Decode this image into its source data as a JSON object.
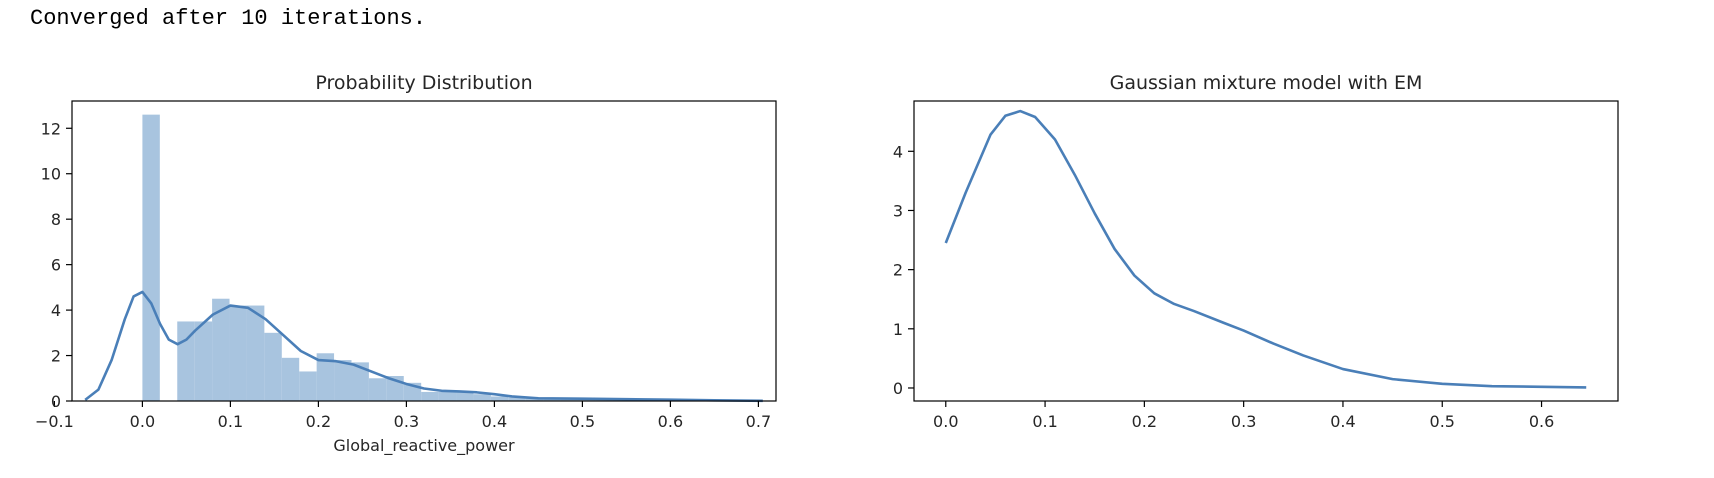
{
  "console": {
    "output_text": "Converged after 10 iterations."
  },
  "colors": {
    "kde_line": "#4a7fb8",
    "hist_bar": "#a8c4df",
    "axis": "#000000",
    "text": "#262626"
  },
  "chart_data": [
    {
      "type": "bar",
      "title": "Probability Distribution",
      "xlabel": "Global_reactive_power",
      "ylabel": "",
      "xlim": [
        -0.08,
        0.72
      ],
      "ylim": [
        0,
        13.2
      ],
      "xticks": [
        -0.1,
        0.0,
        0.1,
        0.2,
        0.3,
        0.4,
        0.5,
        0.6,
        0.7
      ],
      "xtick_labels": [
        "−0.1",
        "0.0",
        "0.1",
        "0.2",
        "0.3",
        "0.4",
        "0.5",
        "0.6",
        "0.7"
      ],
      "yticks": [
        0,
        2,
        4,
        6,
        8,
        10,
        12
      ],
      "ytick_labels": [
        "0",
        "2",
        "4",
        "6",
        "8",
        "10",
        "12"
      ],
      "histogram": {
        "bin_width": 0.0198,
        "bins": [
          {
            "x0": 0.0,
            "value": 12.6
          },
          {
            "x0": 0.0198,
            "value": 0.0
          },
          {
            "x0": 0.0396,
            "value": 3.5
          },
          {
            "x0": 0.0594,
            "value": 3.5
          },
          {
            "x0": 0.0792,
            "value": 4.5
          },
          {
            "x0": 0.099,
            "value": 4.2
          },
          {
            "x0": 0.1188,
            "value": 4.2
          },
          {
            "x0": 0.1386,
            "value": 3.0
          },
          {
            "x0": 0.1584,
            "value": 1.9
          },
          {
            "x0": 0.1782,
            "value": 1.3
          },
          {
            "x0": 0.198,
            "value": 2.1
          },
          {
            "x0": 0.2178,
            "value": 1.8
          },
          {
            "x0": 0.2376,
            "value": 1.7
          },
          {
            "x0": 0.2574,
            "value": 1.0
          },
          {
            "x0": 0.2772,
            "value": 1.1
          },
          {
            "x0": 0.297,
            "value": 0.8
          },
          {
            "x0": 0.3168,
            "value": 0.4
          },
          {
            "x0": 0.3366,
            "value": 0.4
          },
          {
            "x0": 0.3564,
            "value": 0.4
          },
          {
            "x0": 0.3762,
            "value": 0.3
          },
          {
            "x0": 0.396,
            "value": 0.2
          },
          {
            "x0": 0.4158,
            "value": 0.15
          },
          {
            "x0": 0.4356,
            "value": 0.12
          },
          {
            "x0": 0.4554,
            "value": 0.1
          },
          {
            "x0": 0.4752,
            "value": 0.1
          },
          {
            "x0": 0.495,
            "value": 0.08
          },
          {
            "x0": 0.5148,
            "value": 0.07
          },
          {
            "x0": 0.5346,
            "value": 0.06
          },
          {
            "x0": 0.5544,
            "value": 0.05
          },
          {
            "x0": 0.5742,
            "value": 0.05
          },
          {
            "x0": 0.594,
            "value": 0.04
          },
          {
            "x0": 0.6138,
            "value": 0.03
          },
          {
            "x0": 0.6336,
            "value": 0.03
          },
          {
            "x0": 0.6534,
            "value": 0.02
          },
          {
            "x0": 0.6732,
            "value": 0.02
          }
        ]
      },
      "kde": {
        "x": [
          -0.065,
          -0.05,
          -0.035,
          -0.02,
          -0.01,
          0.0,
          0.01,
          0.02,
          0.03,
          0.04,
          0.05,
          0.06,
          0.08,
          0.1,
          0.12,
          0.14,
          0.16,
          0.18,
          0.2,
          0.22,
          0.24,
          0.26,
          0.28,
          0.3,
          0.32,
          0.34,
          0.36,
          0.38,
          0.4,
          0.42,
          0.45,
          0.5,
          0.55,
          0.6,
          0.65,
          0.705
        ],
        "y": [
          0.05,
          0.5,
          1.8,
          3.6,
          4.6,
          4.8,
          4.3,
          3.4,
          2.7,
          2.5,
          2.7,
          3.1,
          3.8,
          4.2,
          4.1,
          3.6,
          2.9,
          2.2,
          1.8,
          1.75,
          1.6,
          1.3,
          1.0,
          0.75,
          0.55,
          0.45,
          0.42,
          0.38,
          0.3,
          0.2,
          0.12,
          0.1,
          0.08,
          0.06,
          0.03,
          0.01
        ]
      }
    },
    {
      "type": "line",
      "title": "Gaussian mixture model with EM",
      "xlabel": "",
      "ylabel": "",
      "xlim": [
        -0.032,
        0.677
      ],
      "ylim": [
        -0.22,
        4.85
      ],
      "xticks": [
        0.0,
        0.1,
        0.2,
        0.3,
        0.4,
        0.5,
        0.6
      ],
      "xtick_labels": [
        "0.0",
        "0.1",
        "0.2",
        "0.3",
        "0.4",
        "0.5",
        "0.6"
      ],
      "yticks": [
        0,
        1,
        2,
        3,
        4
      ],
      "ytick_labels": [
        "0",
        "1",
        "2",
        "3",
        "4"
      ],
      "series": [
        {
          "x": [
            0.0,
            0.02,
            0.045,
            0.06,
            0.075,
            0.09,
            0.11,
            0.13,
            0.15,
            0.17,
            0.19,
            0.21,
            0.23,
            0.25,
            0.28,
            0.3,
            0.33,
            0.36,
            0.4,
            0.45,
            0.5,
            0.55,
            0.6,
            0.645
          ],
          "y": [
            2.45,
            3.3,
            4.28,
            4.6,
            4.68,
            4.58,
            4.2,
            3.6,
            2.95,
            2.35,
            1.9,
            1.6,
            1.42,
            1.3,
            1.1,
            0.97,
            0.75,
            0.55,
            0.32,
            0.15,
            0.07,
            0.03,
            0.02,
            0.01
          ]
        }
      ]
    }
  ]
}
